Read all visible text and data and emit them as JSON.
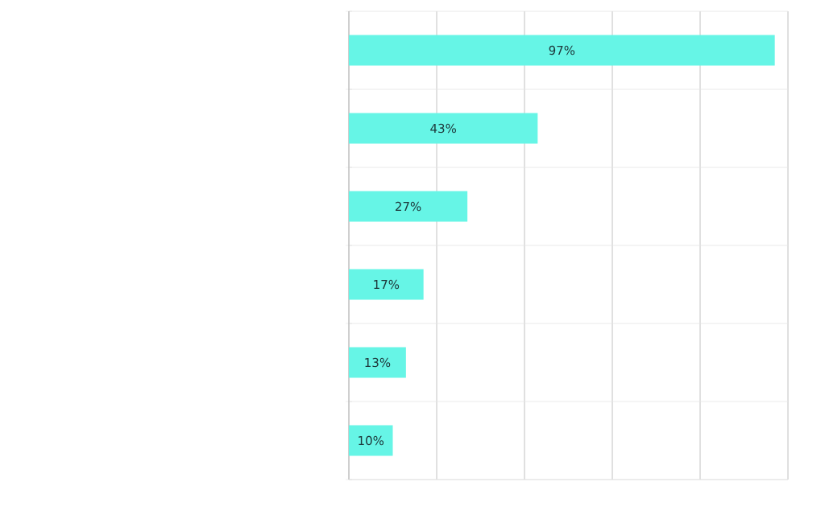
{
  "chart_data": {
    "type": "bar",
    "orientation": "horizontal",
    "categories": [
      null,
      null,
      null,
      null,
      null,
      null
    ],
    "values": [
      97,
      43,
      27,
      17,
      13,
      10
    ],
    "value_labels": [
      "97%",
      "43%",
      "27%",
      "17%",
      "13%",
      "10%"
    ],
    "color": "#66f5e6",
    "xlim": [
      0,
      100
    ],
    "xticks": [
      {
        "value": 0,
        "label": null
      },
      {
        "value": 20,
        "label": null
      },
      {
        "value": 40,
        "label": null
      },
      {
        "value": 60,
        "label": null
      },
      {
        "value": 80,
        "label": null
      },
      {
        "value": 100,
        "label": null
      }
    ],
    "grid": true
  }
}
